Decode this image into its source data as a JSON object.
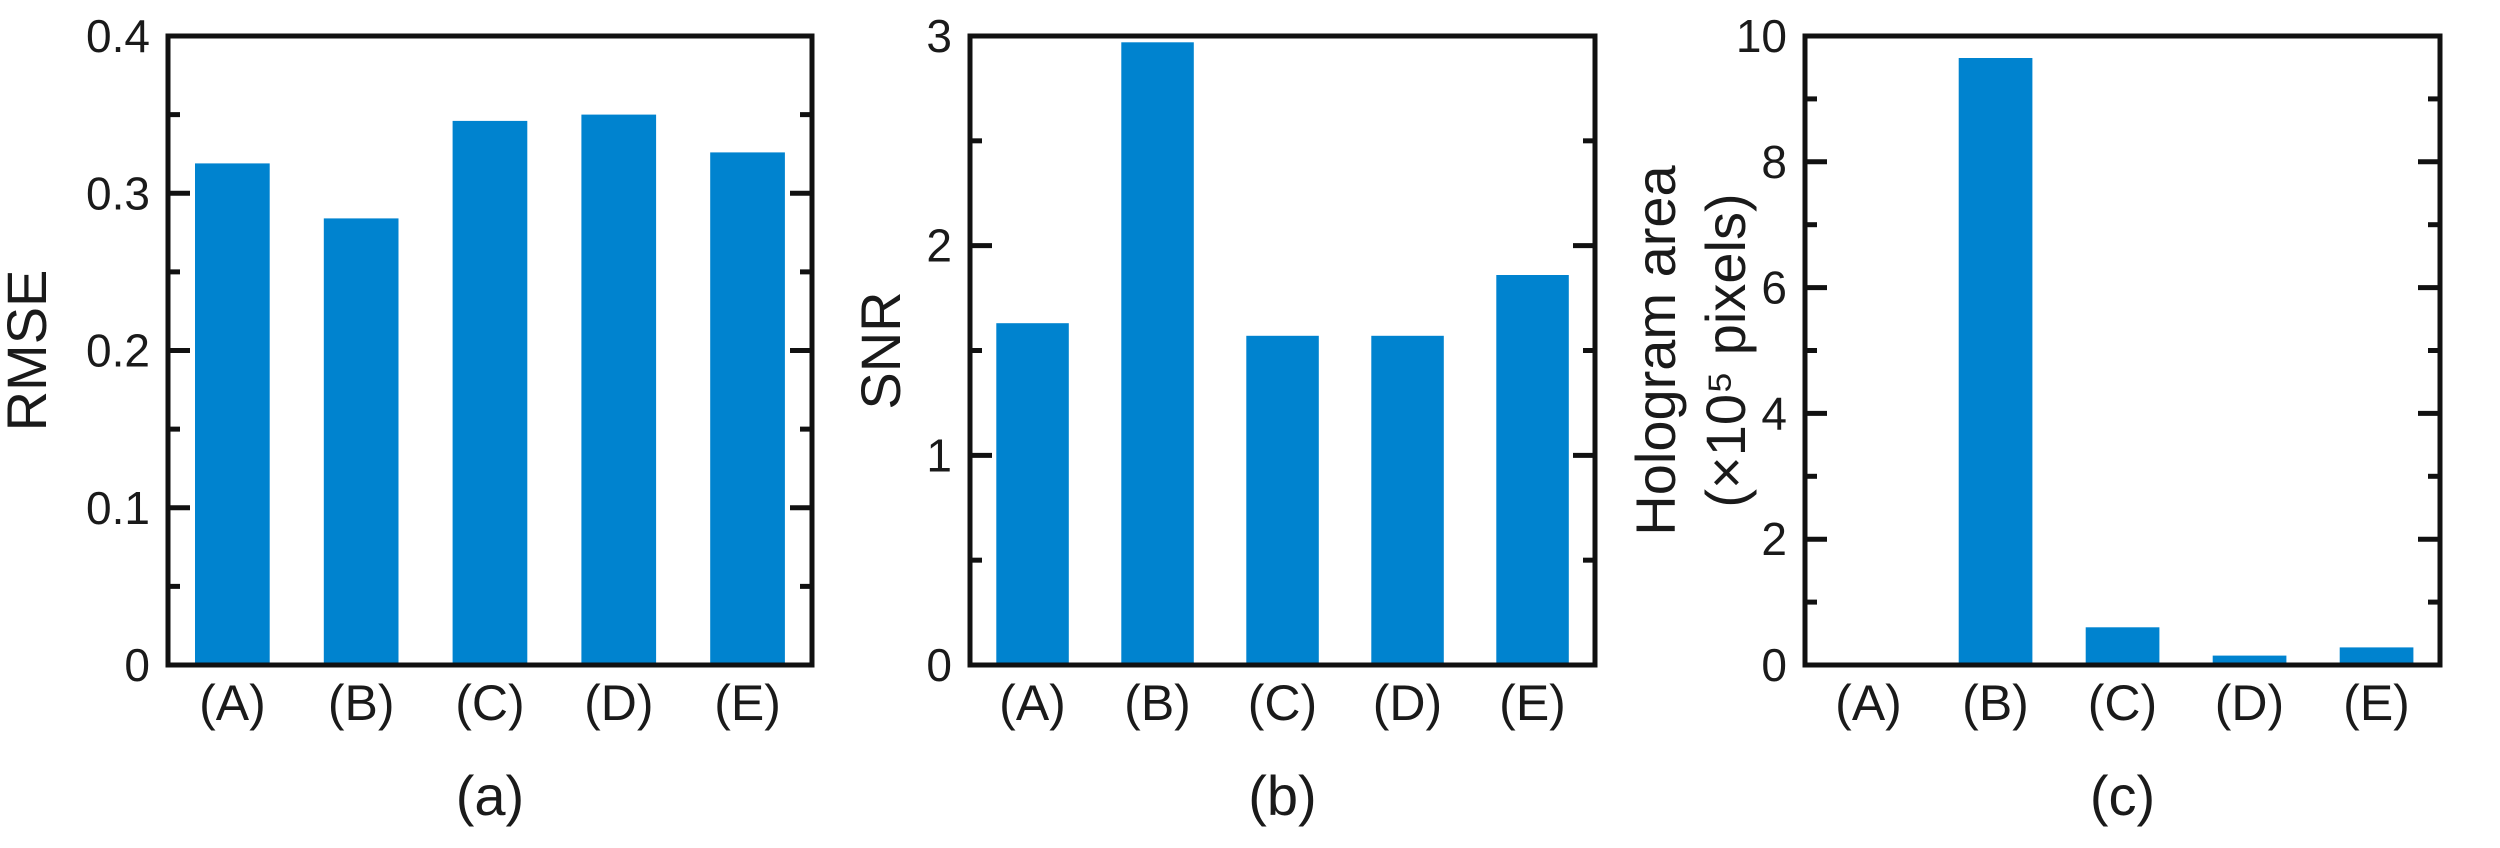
{
  "chart_data": [
    {
      "type": "bar",
      "panel_label": "(a)",
      "categories": [
        "(A)",
        "(B)",
        "(C)",
        "(D)",
        "(E)"
      ],
      "values": [
        0.319,
        0.284,
        0.346,
        0.35,
        0.326
      ],
      "ylabel": "RMSE",
      "ylabel_line2": "",
      "ylim": [
        0,
        0.4
      ],
      "yticks": [
        0,
        0.1,
        0.2,
        0.3,
        0.4
      ],
      "ytick_labels": [
        "0",
        "0.1",
        "0.2",
        "0.3",
        "0.4"
      ],
      "color": "#0083cf",
      "grid": false
    },
    {
      "type": "bar",
      "panel_label": "(b)",
      "categories": [
        "(A)",
        "(B)",
        "(C)",
        "(D)",
        "(E)"
      ],
      "values": [
        1.63,
        2.97,
        1.57,
        1.57,
        1.86
      ],
      "ylabel": "SNR",
      "ylabel_line2": "",
      "ylim": [
        0,
        3
      ],
      "yticks": [
        0,
        1,
        2,
        3
      ],
      "ytick_labels": [
        "0",
        "1",
        "2",
        "3"
      ],
      "color": "#0083cf",
      "grid": false
    },
    {
      "type": "bar",
      "panel_label": "(c)",
      "categories": [
        "(A)",
        "(B)",
        "(C)",
        "(D)",
        "(E)"
      ],
      "values": [
        0.0,
        9.65,
        0.6,
        0.15,
        0.28
      ],
      "ylabel": "Hologram area",
      "ylabel_line2": "(×10⁵ pixels)",
      "ylim": [
        0,
        10
      ],
      "yticks": [
        0,
        2,
        4,
        6,
        8,
        10
      ],
      "ytick_labels": [
        "0",
        "2",
        "4",
        "6",
        "8",
        "10"
      ],
      "color": "#0083cf",
      "grid": false
    }
  ]
}
